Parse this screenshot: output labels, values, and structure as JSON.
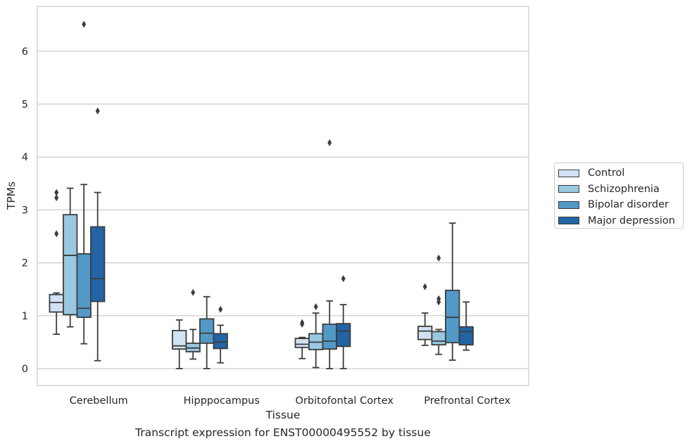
{
  "caption": "Transcript expression for ENST00000495552 by tissue",
  "chart_data": {
    "type": "box",
    "xlabel": "Tissue",
    "ylabel": "TPMs",
    "ylim": [
      -0.32,
      6.85
    ],
    "yticks": [
      0,
      1,
      2,
      3,
      4,
      5,
      6
    ],
    "grid": "horizontal",
    "legend_position": "right",
    "categories": [
      "Cerebellum",
      "Hipppocampus",
      "Orbitofontal Cortex",
      "Prefrontal Cortex"
    ],
    "series": [
      {
        "name": "Control",
        "color": "#d1e2f2",
        "boxes": [
          {
            "whisker_low": 0.65,
            "q1": 1.07,
            "median": 1.25,
            "q3": 1.4,
            "whisker_high": 1.43,
            "outliers": [
              3.33,
              3.23,
              2.55
            ]
          },
          {
            "whisker_low": 0.0,
            "q1": 0.37,
            "median": 0.43,
            "q3": 0.72,
            "whisker_high": 0.92,
            "outliers": []
          },
          {
            "whisker_low": 0.19,
            "q1": 0.4,
            "median": 0.46,
            "q3": 0.57,
            "whisker_high": 0.59,
            "outliers": [
              0.87,
              0.84
            ]
          },
          {
            "whisker_low": 0.44,
            "q1": 0.55,
            "median": 0.71,
            "q3": 0.8,
            "whisker_high": 1.05,
            "outliers": [
              1.55
            ]
          }
        ]
      },
      {
        "name": "Schizophrenia",
        "color": "#9ac8e0",
        "boxes": [
          {
            "whisker_low": 0.79,
            "q1": 1.02,
            "median": 2.14,
            "q3": 2.91,
            "whisker_high": 3.41,
            "outliers": []
          },
          {
            "whisker_low": 0.18,
            "q1": 0.32,
            "median": 0.39,
            "q3": 0.48,
            "whisker_high": 0.74,
            "outliers": [
              1.44
            ]
          },
          {
            "whisker_low": 0.02,
            "q1": 0.36,
            "median": 0.5,
            "q3": 0.66,
            "whisker_high": 1.05,
            "outliers": [
              1.17
            ]
          },
          {
            "whisker_low": 0.27,
            "q1": 0.45,
            "median": 0.52,
            "q3": 0.7,
            "whisker_high": 0.74,
            "outliers": [
              2.09,
              1.32,
              1.26
            ]
          }
        ]
      },
      {
        "name": "Bipolar disorder",
        "color": "#5299c8",
        "boxes": [
          {
            "whisker_low": 0.47,
            "q1": 0.97,
            "median": 1.14,
            "q3": 2.17,
            "whisker_high": 3.48,
            "outliers": [
              6.51
            ]
          },
          {
            "whisker_low": 0.0,
            "q1": 0.48,
            "median": 0.67,
            "q3": 0.94,
            "whisker_high": 1.36,
            "outliers": []
          },
          {
            "whisker_low": 0.0,
            "q1": 0.37,
            "median": 0.52,
            "q3": 0.84,
            "whisker_high": 1.28,
            "outliers": [
              4.27
            ]
          },
          {
            "whisker_low": 0.16,
            "q1": 0.49,
            "median": 0.97,
            "q3": 1.48,
            "whisker_high": 2.75,
            "outliers": []
          }
        ]
      },
      {
        "name": "Major depression",
        "color": "#2264a5",
        "boxes": [
          {
            "whisker_low": 0.15,
            "q1": 1.27,
            "median": 1.7,
            "q3": 2.68,
            "whisker_high": 3.33,
            "outliers": [
              4.87
            ]
          },
          {
            "whisker_low": 0.11,
            "q1": 0.38,
            "median": 0.5,
            "q3": 0.66,
            "whisker_high": 0.82,
            "outliers": [
              1.12
            ]
          },
          {
            "whisker_low": 0.0,
            "q1": 0.42,
            "median": 0.71,
            "q3": 0.85,
            "whisker_high": 1.21,
            "outliers": [
              1.7
            ]
          },
          {
            "whisker_low": 0.35,
            "q1": 0.45,
            "median": 0.7,
            "q3": 0.79,
            "whisker_high": 1.26,
            "outliers": []
          }
        ]
      }
    ]
  }
}
